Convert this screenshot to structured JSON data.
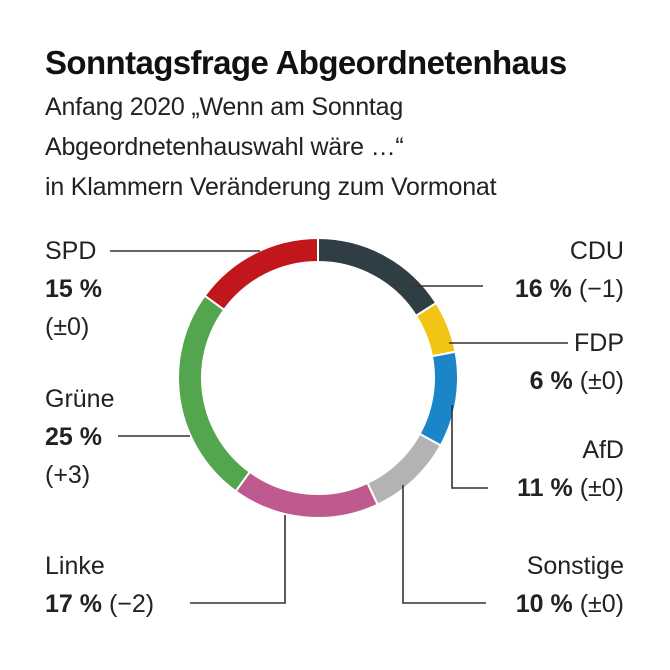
{
  "title": "Sonntagsfrage Abgeordnetenhaus",
  "subtitle_lines": [
    "Anfang 2020 „Wenn am Sonntag",
    "Abgeordnetenhauswahl wäre …“",
    "in Klammern Veränderung zum Vormonat"
  ],
  "chart_data": {
    "type": "pie",
    "style": "donut",
    "title": "Sonntagsfrage Abgeordnetenhaus",
    "slices": [
      {
        "name": "CDU",
        "value": 16,
        "value_label": "16 %",
        "change": "(−1)",
        "color": "#2f3e45"
      },
      {
        "name": "FDP",
        "value": 6,
        "value_label": "6 %",
        "change": "(±0)",
        "color": "#f2c414"
      },
      {
        "name": "AfD",
        "value": 11,
        "value_label": "11 %",
        "change": "(±0)",
        "color": "#1a86c8"
      },
      {
        "name": "Sonstige",
        "value": 10,
        "value_label": "10 %",
        "change": "(±0)",
        "color": "#b3b3b3"
      },
      {
        "name": "Linke",
        "value": 17,
        "value_label": "17 %",
        "change": "(−2)",
        "color": "#bf5a8e"
      },
      {
        "name": "Grüne",
        "value": 25,
        "value_label": "25 %",
        "change": "(+3)",
        "color": "#54a64e"
      },
      {
        "name": "SPD",
        "value": 15,
        "value_label": "15 %",
        "change": "(±0)",
        "color": "#c1161b"
      }
    ]
  }
}
